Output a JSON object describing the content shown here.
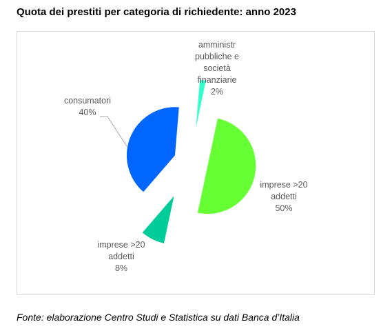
{
  "header": {
    "title": "Quota dei prestiti per categoria di richiedente: anno 2023"
  },
  "footer": {
    "source": "Fonte: elaborazione Centro Studi e Statistica su dati Banca d’Italia"
  },
  "chart_data": {
    "type": "pie",
    "title": "Quota dei prestiti per categoria di richiedente: anno 2023",
    "exploded": true,
    "legend": "none",
    "slices": [
      {
        "label_lines": [
          "imprese >20",
          "addetti"
        ],
        "percent_label": "50%",
        "value": 50,
        "color": "#66ff33"
      },
      {
        "label_lines": [
          "imprese >20",
          "addetti"
        ],
        "percent_label": "8%",
        "value": 8,
        "color": "#00cc99"
      },
      {
        "label_lines": [
          "consumatori"
        ],
        "percent_label": "40%",
        "value": 40,
        "color": "#0066ff"
      },
      {
        "label_lines": [
          "amministr",
          "pubbliche e",
          "società",
          "finanziarie"
        ],
        "percent_label": "2%",
        "value": 2,
        "color": "#33ffcc"
      }
    ]
  }
}
